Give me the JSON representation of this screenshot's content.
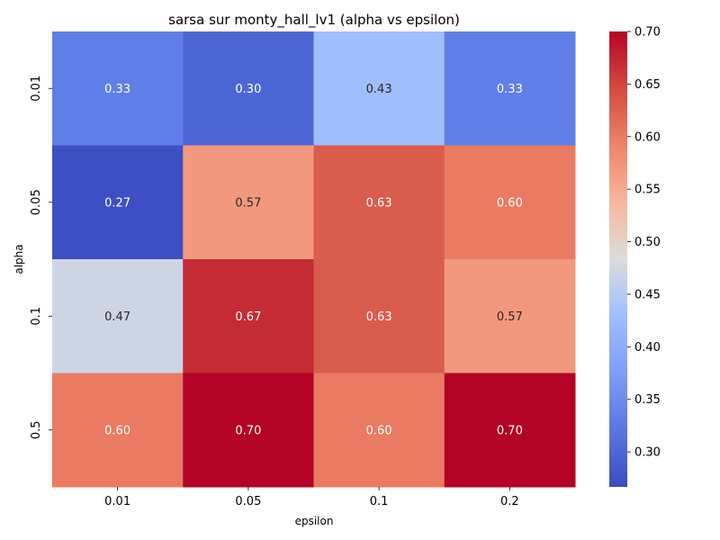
{
  "chart_data": {
    "type": "heatmap",
    "title": "sarsa sur monty_hall_lv1 (alpha vs epsilon)",
    "xlabel": "epsilon",
    "ylabel": "alpha",
    "x_categories": [
      "0.01",
      "0.05",
      "0.1",
      "0.2"
    ],
    "y_categories": [
      "0.01",
      "0.05",
      "0.1",
      "0.5"
    ],
    "values": [
      [
        0.33,
        0.3,
        0.43,
        0.33
      ],
      [
        0.27,
        0.57,
        0.63,
        0.6
      ],
      [
        0.47,
        0.67,
        0.63,
        0.57
      ],
      [
        0.6,
        0.7,
        0.6,
        0.7
      ]
    ],
    "cell_labels": [
      [
        "0.33",
        "0.30",
        "0.43",
        "0.33"
      ],
      [
        "0.27",
        "0.57",
        "0.63",
        "0.60"
      ],
      [
        "0.47",
        "0.67",
        "0.63",
        "0.57"
      ],
      [
        "0.60",
        "0.70",
        "0.60",
        "0.70"
      ]
    ],
    "colormap": "coolwarm",
    "colorbar": {
      "range": [
        0.2667,
        0.7
      ],
      "ticks": [
        0.3,
        0.35,
        0.4,
        0.45,
        0.5,
        0.55,
        0.6,
        0.65,
        0.7
      ],
      "tick_labels": [
        "0.30",
        "0.35",
        "0.40",
        "0.45",
        "0.50",
        "0.55",
        "0.60",
        "0.65",
        "0.70"
      ]
    },
    "annotation_colors": {
      "dark": "#262626",
      "light": "#ffffff"
    }
  }
}
